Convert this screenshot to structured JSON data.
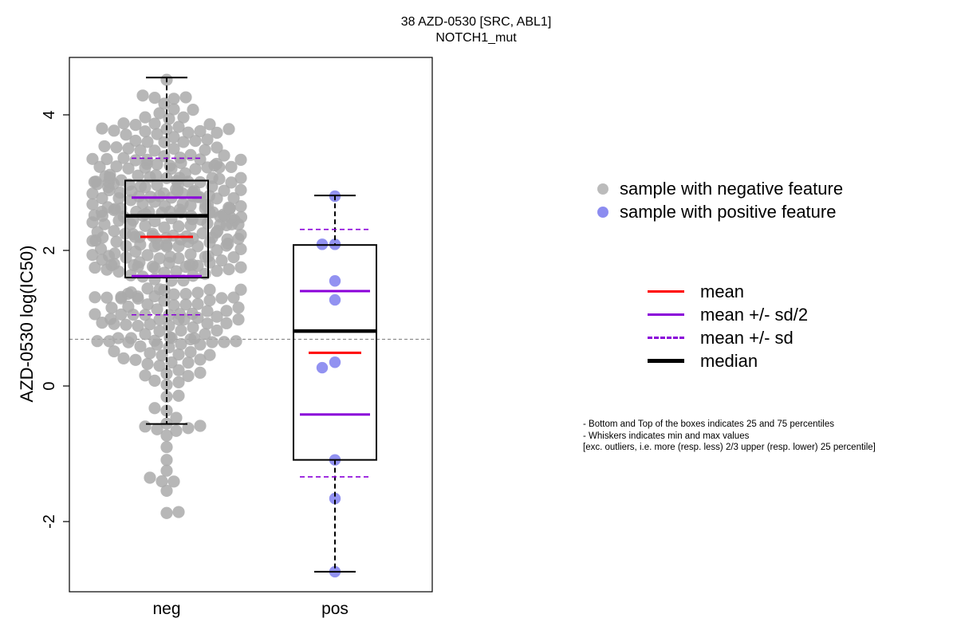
{
  "chart_data": {
    "type": "box",
    "title": "38 AZD-0530 [SRC, ABL1]",
    "subtitle": "NOTCH1_mut",
    "ylabel": "AZD-0530 log(IC50)",
    "xlabel": "",
    "categories": [
      "neg",
      "pos"
    ],
    "ylim": [
      -3.0,
      4.85
    ],
    "yticks": [
      -2,
      0,
      2,
      4
    ],
    "reference_line": 0.69,
    "colors": {
      "neg": "#aaaaaa",
      "pos": "#8c8cf0",
      "mean": "#ff0000",
      "sd": "#8a00d9",
      "median": "#000000"
    },
    "groups": [
      {
        "name": "neg",
        "q1": 1.6,
        "median": 2.51,
        "q3": 3.03,
        "mean": 2.2,
        "mean_minus_sd_half": 1.62,
        "mean_plus_sd_half": 2.78,
        "mean_minus_sd": 1.05,
        "mean_plus_sd": 3.36,
        "whisker_low": -0.56,
        "whisker_high": 4.55,
        "n_points": 380
      },
      {
        "name": "pos",
        "q1": -1.09,
        "median": 0.81,
        "q3": 2.08,
        "mean": 0.49,
        "mean_minus_sd_half": -0.42,
        "mean_plus_sd_half": 1.4,
        "mean_minus_sd": -1.34,
        "mean_plus_sd": 2.31,
        "whisker_low": -2.74,
        "whisker_high": 2.81,
        "points": [
          2.8,
          2.09,
          2.09,
          1.55,
          1.27,
          0.35,
          0.27,
          -1.09,
          -1.66,
          -2.74
        ]
      }
    ]
  },
  "legend": {
    "points": [
      {
        "label": "sample with negative feature",
        "color": "#bbbbbb"
      },
      {
        "label": "sample with positive feature",
        "color": "#8c8cf0"
      }
    ],
    "lines": [
      {
        "label": "mean",
        "color": "#ff0000",
        "style": "solid",
        "width": 3
      },
      {
        "label": "mean +/- sd/2",
        "color": "#8a00d9",
        "style": "solid",
        "width": 3
      },
      {
        "label": "mean +/- sd",
        "color": "#8a00d9",
        "style": "dashed",
        "width": 3
      },
      {
        "label": "median",
        "color": "#000000",
        "style": "solid",
        "width": 5
      }
    ]
  },
  "notes": [
    "- Bottom and Top of the boxes indicates 25 and 75 percentiles",
    "- Whiskers indicates min and max values",
    "[exc. outliers, i.e. more (resp. less) 2/3 upper (resp. lower) 25 percentile]"
  ]
}
